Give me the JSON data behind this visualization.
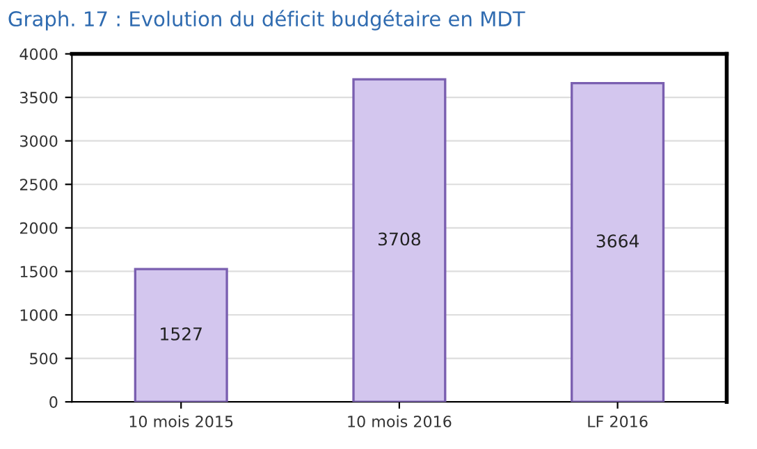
{
  "chart_data": {
    "type": "bar",
    "title": "Graph. 17 : Evolution du déficit budgétaire en MDT",
    "categories": [
      "10 mois 2015",
      "10 mois 2016",
      "LF 2016"
    ],
    "values": [
      1527,
      3708,
      3664
    ],
    "color": "#d3c6ee",
    "ylim": [
      0,
      4000
    ],
    "yticks": [
      0,
      500,
      1000,
      1500,
      2000,
      2500,
      3000,
      3500,
      4000
    ],
    "grid": "y",
    "data_labels": true
  }
}
